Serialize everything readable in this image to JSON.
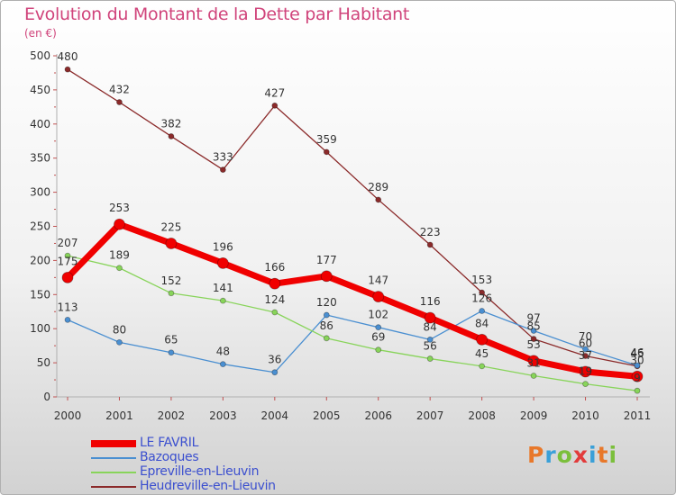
{
  "header": {
    "title": "Evolution du Montant de la Dette par Habitant",
    "unit": "(en €)"
  },
  "brand": {
    "letters": [
      "P",
      "r",
      "o",
      "x",
      "i",
      "t",
      "i"
    ],
    "colors": [
      "#e8782a",
      "#3aa0d8",
      "#7bbf3b",
      "#e23b3b",
      "#3aa0d8",
      "#e8782a",
      "#7bbf3b"
    ]
  },
  "chart_data": {
    "type": "line",
    "title": "Evolution du Montant de la Dette par Habitant",
    "subtitle": "(en €)",
    "x": [
      "2000",
      "2001",
      "2002",
      "2003",
      "2004",
      "2005",
      "2006",
      "2007",
      "2008",
      "2009",
      "2010",
      "2011"
    ],
    "ylim": [
      0,
      500
    ],
    "yticks": [
      "0",
      "50",
      "100",
      "150",
      "200",
      "250",
      "300",
      "350",
      "400",
      "450",
      "500"
    ],
    "grid": false,
    "legend": "bottom-left",
    "series": [
      {
        "name": "Heudreville-en-Lieuvin",
        "color": "#8b2a2a",
        "values": [
          480,
          432,
          382,
          333,
          427,
          359,
          289,
          223,
          153,
          85,
          60,
          45
        ]
      },
      {
        "name": "Bazoques",
        "color": "#4a8fd1",
        "values": [
          113,
          80,
          65,
          48,
          36,
          120,
          102,
          84,
          126,
          97,
          70,
          46
        ]
      },
      {
        "name": "Epreville-en-Lieuvin",
        "color": "#88d45a",
        "values": [
          207,
          189,
          152,
          141,
          124,
          86,
          69,
          56,
          45,
          31,
          19,
          9
        ]
      },
      {
        "name": "LE FAVRIL",
        "color": "#f00000",
        "values": [
          175,
          253,
          225,
          196,
          166,
          177,
          147,
          116,
          84,
          53,
          37,
          30
        ]
      }
    ],
    "legend_order": [
      "LE FAVRIL",
      "Bazoques",
      "Epreville-en-Lieuvin",
      "Heudreville-en-Lieuvin"
    ]
  }
}
